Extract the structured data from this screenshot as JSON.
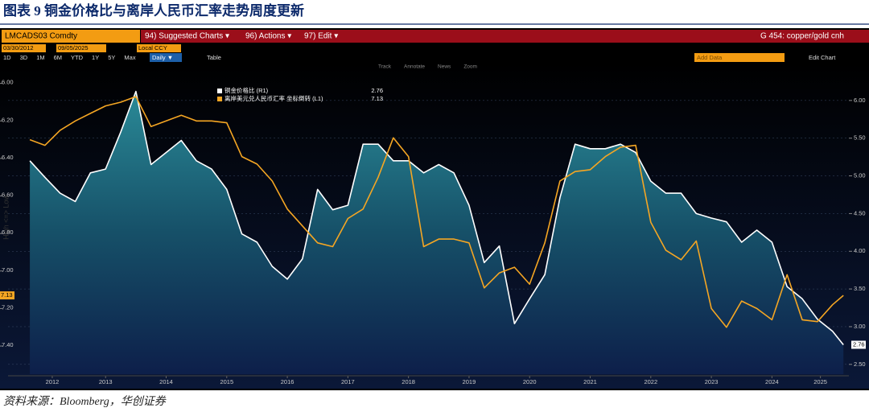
{
  "document": {
    "title": "图表 9 铜金价格比与离岸人民币汇率走势周度更新",
    "source": "资料来源：Bloomberg，华创证券"
  },
  "toolbar": {
    "ticker": "LMCADS03 Comdty",
    "menu": [
      "94) Suggested Charts ▾",
      "96) Actions ▾",
      "97) Edit ▾"
    ],
    "chart_name": "G 454: copper/gold cnh",
    "start_date": "03/30/2012",
    "end_date": "09/05/2025",
    "currency": "Local CCY",
    "periods": [
      "1D",
      "3D",
      "1M",
      "6M",
      "YTD",
      "1Y",
      "5Y",
      "Max"
    ],
    "frequency": "Daily ▼",
    "table": "Table",
    "add_data": "Add Data",
    "edit_chart": "Edit Chart",
    "tools": [
      "Track",
      "Annotate",
      "News",
      "Zoom"
    ]
  },
  "chart_data": {
    "type": "line",
    "ylabel": "High <=> Low",
    "x": [
      2012.25,
      2012.5,
      2012.75,
      2013,
      2013.25,
      2013.5,
      2013.75,
      2014,
      2014.25,
      2014.5,
      2014.75,
      2015,
      2015.25,
      2015.5,
      2015.75,
      2016,
      2016.25,
      2016.5,
      2016.75,
      2017,
      2017.25,
      2017.5,
      2017.75,
      2018,
      2018.25,
      2018.5,
      2018.75,
      2019,
      2019.25,
      2019.5,
      2019.75,
      2020,
      2020.25,
      2020.5,
      2020.75,
      2021,
      2021.25,
      2021.5,
      2021.75,
      2022,
      2022.25,
      2022.5,
      2022.75,
      2023,
      2023.25,
      2023.5,
      2023.75,
      2024,
      2024.25,
      2024.5,
      2024.75,
      2025,
      2025.25,
      2025.5,
      2025.68
    ],
    "series": [
      {
        "name": "铜金价格比 (R1)",
        "color": "#ffffff",
        "axis": "y2",
        "values": [
          5.2,
          4.98,
          4.77,
          4.66,
          5.04,
          5.09,
          5.58,
          6.12,
          5.15,
          5.31,
          5.47,
          5.2,
          5.09,
          4.82,
          4.23,
          4.12,
          3.8,
          3.63,
          3.9,
          4.82,
          4.55,
          4.61,
          5.42,
          5.42,
          5.2,
          5.2,
          5.04,
          5.15,
          5.04,
          4.61,
          3.85,
          4.07,
          3.04,
          3.37,
          3.69,
          4.71,
          5.42,
          5.36,
          5.36,
          5.42,
          5.31,
          4.93,
          4.77,
          4.77,
          4.5,
          4.44,
          4.39,
          4.12,
          4.28,
          4.12,
          3.53,
          3.37,
          3.1,
          2.94,
          2.76
        ]
      },
      {
        "name": "离岸美元兑人民币汇率 坐标倒转 (L1)",
        "color": "#f5a623",
        "axis": "y",
        "values": [
          6.3,
          6.33,
          6.25,
          6.2,
          6.16,
          6.12,
          6.1,
          6.07,
          6.23,
          6.2,
          6.17,
          6.2,
          6.2,
          6.21,
          6.39,
          6.43,
          6.52,
          6.67,
          6.76,
          6.85,
          6.87,
          6.72,
          6.67,
          6.5,
          6.29,
          6.39,
          6.87,
          6.83,
          6.83,
          6.85,
          7.09,
          7.01,
          6.98,
          7.07,
          6.85,
          6.52,
          6.47,
          6.46,
          6.39,
          6.34,
          6.33,
          6.74,
          6.89,
          6.94,
          6.84,
          7.2,
          7.3,
          7.16,
          7.2,
          7.26,
          7.02,
          7.26,
          7.27,
          7.18,
          7.13
        ]
      }
    ],
    "xlim": [
      2011.89,
      2025.77
    ],
    "xticks": [
      {
        "value": 2012.62,
        "label": "2012"
      },
      {
        "value": 2013.5,
        "label": "2013"
      },
      {
        "value": 2014.5,
        "label": "2014"
      },
      {
        "value": 2015.5,
        "label": "2015"
      },
      {
        "value": 2016.5,
        "label": "2016"
      },
      {
        "value": 2017.5,
        "label": "2017"
      },
      {
        "value": 2018.5,
        "label": "2018"
      },
      {
        "value": 2019.5,
        "label": "2019"
      },
      {
        "value": 2020.5,
        "label": "2020"
      },
      {
        "value": 2021.5,
        "label": "2021"
      },
      {
        "value": 2022.5,
        "label": "2022"
      },
      {
        "value": 2023.5,
        "label": "2023"
      },
      {
        "value": 2024.5,
        "label": "2024"
      },
      {
        "value": 2025.3,
        "label": "2025"
      }
    ],
    "ylim": [
      7.55,
      5.89
    ],
    "yticks": [
      {
        "value": 6.0,
        "label": "6.00"
      },
      {
        "value": 6.2,
        "label": "6.20"
      },
      {
        "value": 6.4,
        "label": "6.40"
      },
      {
        "value": 6.6,
        "label": "6.60"
      },
      {
        "value": 6.8,
        "label": "6.80"
      },
      {
        "value": 7.0,
        "label": "7.00"
      },
      {
        "value": 7.2,
        "label": "7.20"
      },
      {
        "value": 7.4,
        "label": "7.40"
      }
    ],
    "y2lim": [
      2.37,
      6.5
    ],
    "y2ticks": [
      {
        "value": 6.0,
        "label": "6.00"
      },
      {
        "value": 5.5,
        "label": "5.50"
      },
      {
        "value": 5.0,
        "label": "5.00"
      },
      {
        "value": 4.5,
        "label": "4.50"
      },
      {
        "value": 4.0,
        "label": "4.00"
      },
      {
        "value": 3.5,
        "label": "3.50"
      },
      {
        "value": 3.0,
        "label": "3.00"
      },
      {
        "value": 2.5,
        "label": "2.50"
      }
    ],
    "grid": true,
    "legend": "top-left"
  }
}
